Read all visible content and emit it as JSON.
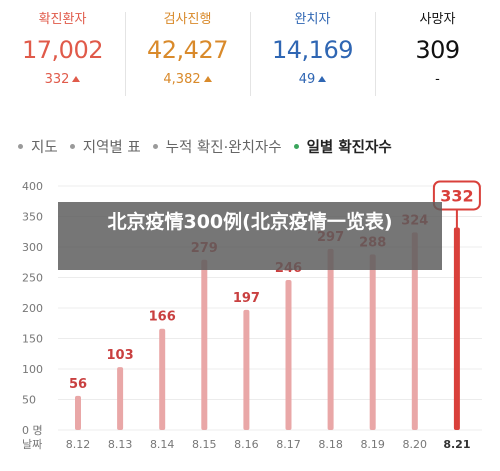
{
  "stats": [
    {
      "label": "확진환자",
      "value": "17,002",
      "change": "332",
      "arrow": true,
      "color": "#e05a4a"
    },
    {
      "label": "검사진행",
      "value": "42,427",
      "change": "4,382",
      "arrow": true,
      "color": "#d98a2b"
    },
    {
      "label": "완치자",
      "value": "14,169",
      "change": "49",
      "arrow": true,
      "color": "#2f66b3"
    },
    {
      "label": "사망자",
      "value": "309",
      "change": "-",
      "arrow": false,
      "color": "#111111"
    }
  ],
  "tabs": [
    "지도",
    "지역별 표",
    "누적 확진·완치자수",
    "일별 확진자수"
  ],
  "banner": "北京疫情300例(北京疫情一览表)",
  "colors": {
    "bar": "#e9a7a7",
    "bar_highlight": "#d9403b",
    "label": "#c94040"
  },
  "chart_data": {
    "type": "bar",
    "categories": [
      "8.12",
      "8.13",
      "8.14",
      "8.15",
      "8.16",
      "8.17",
      "8.18",
      "8.19",
      "8.20",
      "8.21"
    ],
    "values": [
      56,
      103,
      166,
      279,
      197,
      246,
      297,
      288,
      324,
      332
    ],
    "highlight_index": 9,
    "ylim": [
      0,
      400
    ],
    "yticks": [
      "0 명",
      "50",
      "100",
      "150",
      "200",
      "250",
      "300",
      "350",
      "400"
    ],
    "x_axis_label": "날짜",
    "grid": true
  }
}
